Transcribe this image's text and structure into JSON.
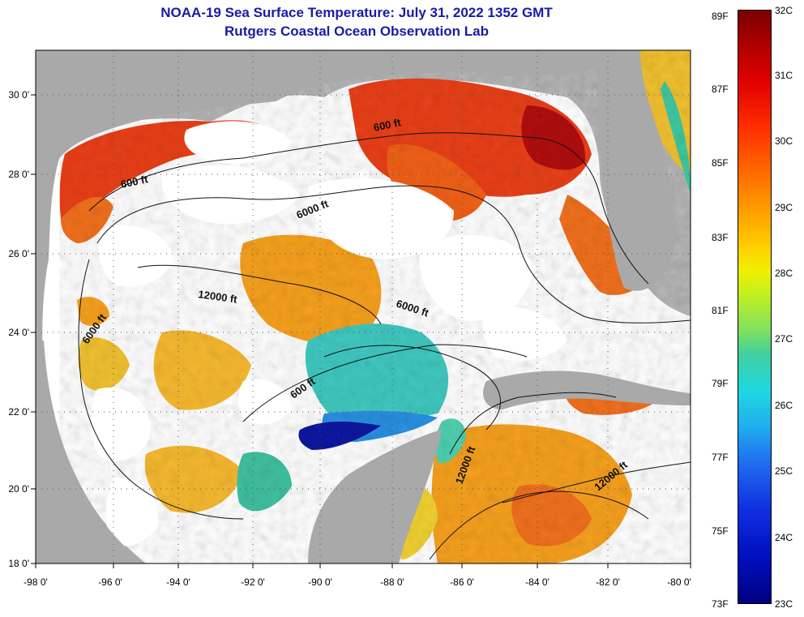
{
  "title": {
    "line1": "NOAA-19 Sea Surface Temperature:  July 31, 2022 1352 GMT",
    "line2": "Rutgers Coastal Ocean Observation Lab"
  },
  "axes": {
    "lat_labels": [
      "30 0'",
      "28 0'",
      "26 0'",
      "24 0'",
      "22 0'",
      "20 0'",
      "18 0'"
    ],
    "lon_labels": [
      "-98 0'",
      "-96 0'",
      "-94 0'",
      "-92 0'",
      "-90 0'",
      "-88 0'",
      "-86 0'",
      "-84 0'",
      "-82 0'",
      "-80 0'"
    ]
  },
  "contour_labels": [
    "600 ft",
    "6000 ft",
    "600 ft",
    "12000 ft",
    "6000 ft",
    "6000 ft",
    "600 ft",
    "12000 ft",
    "12000 ft"
  ],
  "colorbar": {
    "fahrenheit": [
      "89F",
      "87F",
      "85F",
      "83F",
      "81F",
      "79F",
      "77F",
      "75F",
      "73F"
    ],
    "celsius": [
      "32C",
      "31C",
      "30C",
      "29C",
      "28C",
      "27C",
      "26C",
      "25C",
      "24C",
      "23C"
    ]
  },
  "colors": {
    "land": "#a9a9a9",
    "cloud": "#ffffff",
    "title": "#1a1aa6",
    "warm": "#e8401a",
    "hot": "#b01010",
    "mid": "#f5a020",
    "cool": "#30c0e0",
    "cold": "#0a1aa0"
  }
}
